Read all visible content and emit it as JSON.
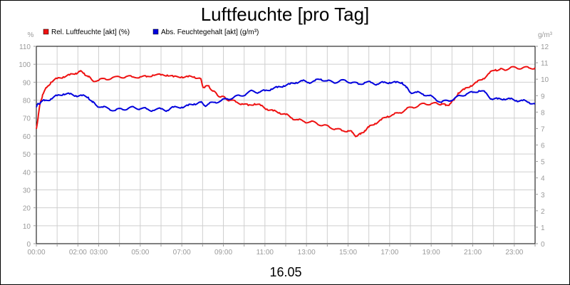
{
  "chart_data": {
    "type": "line",
    "title": "Luftfeuchte [pro Tag]",
    "xlabel": "16.05",
    "y_left_unit": "%",
    "y_right_unit": "g/m³",
    "ylim_left": [
      0,
      110
    ],
    "ylim_right": [
      0,
      12
    ],
    "y_left_ticks": [
      0,
      10,
      20,
      30,
      40,
      50,
      60,
      70,
      80,
      90,
      100,
      110
    ],
    "y_right_ticks": [
      0,
      1,
      2,
      3,
      4,
      5,
      6,
      7,
      8,
      9,
      10,
      11,
      12
    ],
    "x_tick_labels": [
      "00:00",
      "02:00",
      "03:00",
      "05:00",
      "07:00",
      "09:00",
      "11:00",
      "13:00",
      "15:00",
      "17:00",
      "19:00",
      "21:00",
      "23:00"
    ],
    "x_tick_hours": [
      0,
      2,
      3,
      5,
      7,
      9,
      11,
      13,
      15,
      17,
      19,
      21,
      23
    ],
    "x_range_hours": [
      0,
      24
    ],
    "grid": true,
    "legend_position": "top-left",
    "series": [
      {
        "name": "Rel. Luftfeuchte [akt] (%)",
        "color": "#ee1111",
        "axis": "left",
        "x": [
          0,
          0.1,
          0.2,
          0.3,
          0.5,
          0.7,
          1.0,
          1.3,
          1.6,
          1.9,
          2.1,
          2.3,
          2.5,
          2.7,
          3.0,
          3.3,
          3.6,
          4.0,
          4.3,
          4.6,
          5.0,
          5.3,
          5.6,
          6.0,
          6.3,
          6.6,
          7.0,
          7.3,
          7.6,
          7.9,
          8.0,
          8.1,
          8.3,
          8.5,
          8.7,
          8.9,
          9.1,
          9.3,
          9.6,
          9.9,
          10.2,
          10.5,
          10.8,
          11.1,
          11.4,
          11.7,
          12.0,
          12.3,
          12.6,
          12.9,
          13.2,
          13.5,
          13.8,
          14.1,
          14.4,
          14.7,
          15.0,
          15.2,
          15.4,
          15.6,
          15.8,
          16.0,
          16.3,
          16.6,
          16.9,
          17.2,
          17.5,
          17.8,
          18.1,
          18.4,
          18.7,
          19.0,
          19.3,
          19.5,
          19.7,
          19.9,
          20.1,
          20.3,
          20.6,
          20.9,
          21.2,
          21.5,
          21.8,
          22.1,
          22.3,
          22.5,
          22.8,
          23.1,
          23.4,
          23.7,
          24.0
        ],
        "y": [
          64,
          72,
          79,
          83,
          87,
          90,
          92,
          93,
          94,
          95,
          96,
          95,
          93,
          91,
          91,
          92,
          92,
          93,
          93,
          93,
          93,
          93,
          94,
          94,
          94,
          93,
          93,
          93,
          93,
          92,
          88,
          87,
          88,
          85,
          83,
          82,
          81,
          80,
          79,
          78,
          77,
          78,
          77,
          75,
          74,
          73,
          72,
          70,
          69,
          68,
          68,
          67,
          66,
          65,
          64,
          63,
          63,
          62,
          60,
          61,
          63,
          65,
          67,
          69,
          71,
          72,
          73,
          75,
          76,
          77,
          78,
          78,
          78,
          78,
          77,
          78,
          80,
          84,
          86,
          88,
          90,
          92,
          95,
          97,
          97,
          97,
          98,
          98,
          98,
          98,
          98
        ]
      },
      {
        "name": "Abs. Feuchtegehalt [akt] (g/m³)",
        "color": "#0000dd",
        "axis": "right",
        "x": [
          0,
          0.1,
          0.2,
          0.4,
          0.7,
          1.0,
          1.3,
          1.6,
          1.9,
          2.2,
          2.5,
          2.7,
          2.9,
          3.2,
          3.5,
          3.8,
          4.1,
          4.4,
          4.7,
          5.0,
          5.3,
          5.6,
          6.0,
          6.3,
          6.6,
          7.0,
          7.3,
          7.6,
          7.9,
          8.1,
          8.3,
          8.6,
          8.9,
          9.2,
          9.5,
          9.8,
          10.1,
          10.4,
          10.7,
          11.0,
          11.3,
          11.6,
          11.9,
          12.2,
          12.5,
          12.8,
          13.1,
          13.4,
          13.7,
          14.0,
          14.3,
          14.6,
          14.9,
          15.2,
          15.5,
          15.8,
          16.1,
          16.4,
          16.7,
          17.0,
          17.3,
          17.6,
          17.8,
          18.0,
          18.3,
          18.6,
          18.9,
          19.2,
          19.5,
          19.8,
          20.1,
          20.4,
          20.7,
          21.0,
          21.3,
          21.6,
          21.9,
          22.2,
          22.5,
          22.8,
          23.1,
          23.4,
          23.7,
          24.0
        ],
        "y": [
          8.3,
          8.5,
          8.6,
          8.7,
          8.8,
          9.0,
          9.1,
          9.1,
          9.0,
          9.0,
          8.9,
          8.6,
          8.4,
          8.3,
          8.2,
          8.1,
          8.2,
          8.2,
          8.3,
          8.2,
          8.2,
          8.1,
          8.2,
          8.1,
          8.3,
          8.3,
          8.4,
          8.5,
          8.6,
          8.4,
          8.5,
          8.6,
          8.7,
          8.8,
          8.9,
          9.0,
          9.1,
          9.3,
          9.2,
          9.3,
          9.4,
          9.5,
          9.6,
          9.7,
          9.8,
          9.9,
          9.8,
          9.9,
          10.0,
          9.9,
          9.8,
          9.9,
          9.9,
          9.8,
          9.7,
          9.8,
          9.8,
          9.7,
          9.8,
          9.8,
          9.8,
          9.8,
          9.5,
          9.2,
          9.2,
          9.1,
          9.0,
          8.8,
          8.6,
          8.7,
          8.8,
          9.0,
          9.1,
          9.2,
          9.3,
          9.2,
          8.8,
          8.8,
          8.8,
          8.8,
          8.7,
          8.7,
          8.6,
          8.5
        ]
      }
    ]
  }
}
